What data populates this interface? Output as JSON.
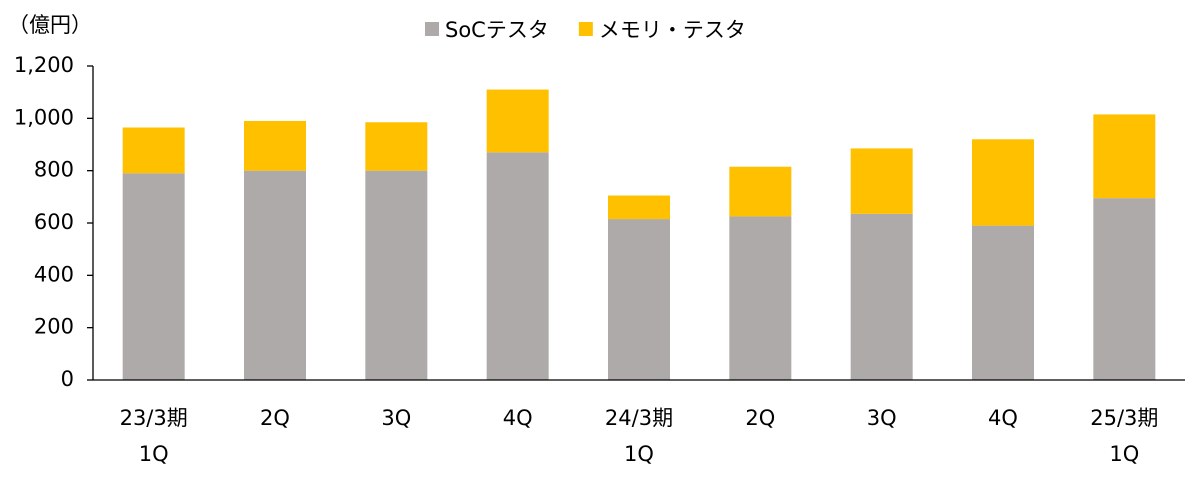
{
  "chart_data": {
    "type": "stacked_bar",
    "y_label": "（億円）",
    "categories": [
      "23/3期\n1Q",
      "2Q",
      "3Q",
      "4Q",
      "24/3期\n1Q",
      "2Q",
      "3Q",
      "4Q",
      "25/3期\n1Q"
    ],
    "series": [
      {
        "name": "SoCテスタ",
        "color": "#aeaaaa",
        "values": [
          790,
          800,
          800,
          870,
          615,
          625,
          635,
          590,
          695
        ]
      },
      {
        "name": "メモリ・テスタ",
        "color": "#ffc000",
        "values": [
          175,
          190,
          185,
          240,
          90,
          190,
          250,
          330,
          320
        ]
      }
    ],
    "ylim": [
      0,
      1200
    ],
    "yticks": [
      0,
      200,
      400,
      600,
      800,
      {
        "value": 1000,
        "label": "1,000"
      },
      {
        "value": 1200,
        "label": "1,200"
      }
    ],
    "grid": false,
    "legend": "top"
  }
}
